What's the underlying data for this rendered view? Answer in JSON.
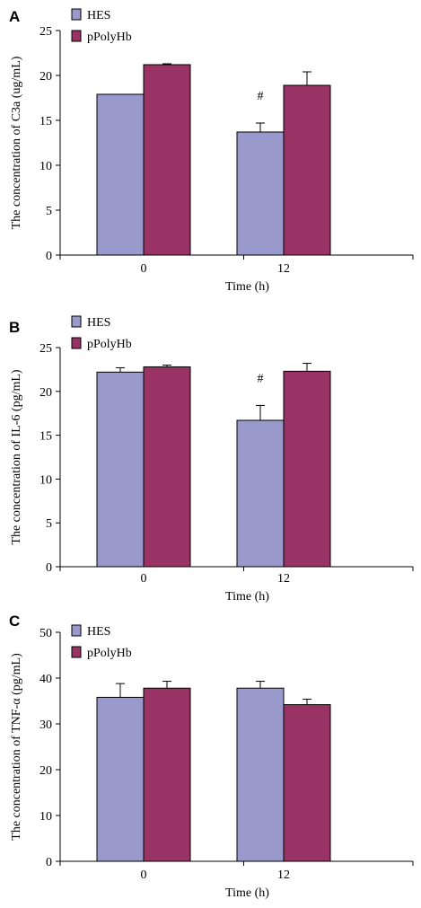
{
  "chart_data": [
    {
      "panel": "A",
      "type": "bar",
      "categories": [
        "0",
        "12"
      ],
      "xlabel": "Time (h)",
      "ylabel": "The concentration of  C3a (ug/mL)",
      "ylim": [
        0,
        25
      ],
      "yticks": [
        0,
        5,
        10,
        15,
        20,
        25
      ],
      "legend": "top-left",
      "grid": false,
      "series": [
        {
          "name": "HES",
          "color": "#9999cc",
          "values": [
            17.9,
            13.7
          ],
          "errors": [
            0,
            1.0
          ]
        },
        {
          "name": "pPolyHb",
          "color": "#993366",
          "values": [
            21.2,
            18.9
          ],
          "errors": [
            0.1,
            1.5
          ]
        }
      ],
      "annotations": [
        {
          "text": "#",
          "category": 1,
          "series": 0
        }
      ]
    },
    {
      "panel": "B",
      "type": "bar",
      "categories": [
        "0",
        "12"
      ],
      "xlabel": "Time (h)",
      "ylabel": "The concentration of IL-6 (pg/mL)",
      "ylim": [
        0,
        25
      ],
      "yticks": [
        0,
        5,
        10,
        15,
        20,
        25
      ],
      "legend": "top-left",
      "grid": false,
      "series": [
        {
          "name": "HES",
          "color": "#9999cc",
          "values": [
            22.2,
            16.7
          ],
          "errors": [
            0.5,
            1.7
          ]
        },
        {
          "name": "pPolyHb",
          "color": "#993366",
          "values": [
            22.8,
            22.3
          ],
          "errors": [
            0.2,
            0.9
          ]
        }
      ],
      "annotations": [
        {
          "text": "#",
          "category": 1,
          "series": 0
        }
      ]
    },
    {
      "panel": "C",
      "type": "bar",
      "categories": [
        "0",
        "12"
      ],
      "xlabel": "Time (h)",
      "ylabel": "The concentration of TNF-α (pg/mL)",
      "ylim": [
        0,
        50
      ],
      "yticks": [
        0,
        10,
        20,
        30,
        40,
        50
      ],
      "legend": "top-left",
      "grid": false,
      "series": [
        {
          "name": "HES",
          "color": "#9999cc",
          "values": [
            35.8,
            37.8
          ],
          "errors": [
            3.0,
            1.5
          ]
        },
        {
          "name": "pPolyHb",
          "color": "#993366",
          "values": [
            37.8,
            34.2
          ],
          "errors": [
            1.5,
            1.2
          ]
        }
      ],
      "annotations": []
    }
  ]
}
